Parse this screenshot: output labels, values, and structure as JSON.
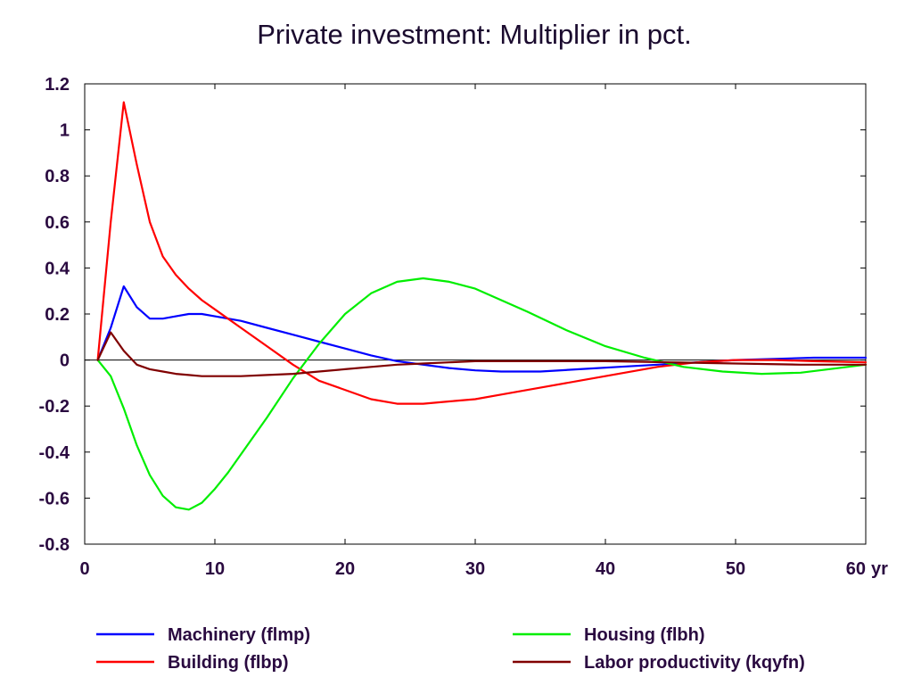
{
  "chart_data": {
    "type": "line",
    "title": "Private investment: Multiplier in pct.",
    "xlabel": "",
    "ylabel": "",
    "x_unit_label": "yr",
    "xlim": [
      0,
      60
    ],
    "ylim": [
      -0.8,
      1.2
    ],
    "x_ticks": [
      0,
      10,
      20,
      30,
      40,
      50,
      60
    ],
    "x_tick_labels": [
      "0",
      "10",
      "20",
      "30",
      "40",
      "50",
      "60"
    ],
    "y_ticks": [
      1.2,
      1.0,
      0.8,
      0.6,
      0.4,
      0.2,
      0.0,
      -0.2,
      -0.4,
      -0.6,
      -0.8
    ],
    "y_tick_labels": [
      "1.2",
      "1",
      "0.8",
      "0.6",
      "0.4",
      "0.2",
      "0",
      "-0.2",
      "-0.4",
      "-0.6",
      "-0.8"
    ],
    "grid": false,
    "zero_line": true,
    "legend_position": "bottom",
    "series": [
      {
        "name": "Machinery (flmp)",
        "color": "#0000ff",
        "x": [
          1,
          2,
          3,
          4,
          5,
          6,
          7,
          8,
          9,
          10,
          12,
          14,
          16,
          18,
          20,
          22,
          24,
          26,
          28,
          30,
          32,
          35,
          38,
          41,
          44,
          47,
          50,
          53,
          56,
          60
        ],
        "values": [
          0.0,
          0.14,
          0.32,
          0.23,
          0.18,
          0.18,
          0.19,
          0.2,
          0.2,
          0.19,
          0.17,
          0.14,
          0.11,
          0.08,
          0.05,
          0.02,
          -0.005,
          -0.02,
          -0.035,
          -0.045,
          -0.05,
          -0.05,
          -0.04,
          -0.03,
          -0.02,
          -0.01,
          0.0,
          0.005,
          0.01,
          0.01
        ]
      },
      {
        "name": "Building (flbp)",
        "color": "#ff0000",
        "x": [
          1,
          2,
          3,
          4,
          5,
          6,
          7,
          8,
          9,
          10,
          12,
          14,
          16,
          18,
          20,
          22,
          24,
          26,
          28,
          30,
          32,
          35,
          38,
          41,
          44,
          47,
          50,
          53,
          56,
          60
        ],
        "values": [
          0.0,
          0.6,
          1.12,
          0.85,
          0.6,
          0.45,
          0.37,
          0.31,
          0.26,
          0.22,
          0.14,
          0.06,
          -0.02,
          -0.09,
          -0.13,
          -0.17,
          -0.19,
          -0.19,
          -0.18,
          -0.17,
          -0.15,
          -0.12,
          -0.09,
          -0.06,
          -0.03,
          -0.01,
          0.0,
          0.0,
          -0.005,
          -0.01
        ]
      },
      {
        "name": "Housing (flbh)",
        "color": "#00ee00",
        "x": [
          1,
          2,
          3,
          4,
          5,
          6,
          7,
          8,
          9,
          10,
          11,
          12,
          14,
          16,
          18,
          20,
          22,
          24,
          26,
          28,
          30,
          32,
          34,
          37,
          40,
          43,
          46,
          49,
          52,
          55,
          60
        ],
        "values": [
          0.0,
          -0.07,
          -0.21,
          -0.37,
          -0.5,
          -0.59,
          -0.64,
          -0.65,
          -0.62,
          -0.56,
          -0.49,
          -0.41,
          -0.25,
          -0.08,
          0.07,
          0.2,
          0.29,
          0.34,
          0.355,
          0.34,
          0.31,
          0.26,
          0.21,
          0.13,
          0.06,
          0.01,
          -0.03,
          -0.05,
          -0.06,
          -0.055,
          -0.02
        ]
      },
      {
        "name": "Labor productivity (kqyfn)",
        "color": "#800000",
        "x": [
          1,
          2,
          3,
          4,
          5,
          6,
          7,
          8,
          9,
          10,
          12,
          14,
          16,
          18,
          20,
          22,
          24,
          26,
          28,
          30,
          35,
          40,
          45,
          50,
          55,
          60
        ],
        "values": [
          0.0,
          0.12,
          0.04,
          -0.02,
          -0.04,
          -0.05,
          -0.06,
          -0.065,
          -0.07,
          -0.07,
          -0.07,
          -0.065,
          -0.06,
          -0.05,
          -0.04,
          -0.03,
          -0.02,
          -0.015,
          -0.01,
          -0.005,
          -0.005,
          -0.005,
          -0.01,
          -0.015,
          -0.02,
          -0.02
        ]
      }
    ]
  }
}
